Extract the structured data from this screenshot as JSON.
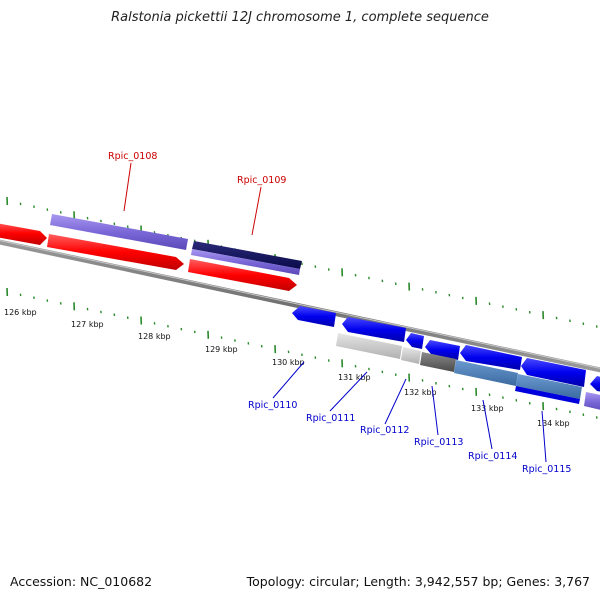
{
  "title": "Ralstonia pickettii 12J chromosome 1, complete sequence",
  "footer": {
    "accession": "Accession: NC_010682",
    "summary": "Topology: circular; Length: 3,942,557 bp; Genes: 3,767"
  },
  "colors": {
    "forward_gene": "#ff0000",
    "reverse_gene": "#0000ee",
    "forward_label": "#cc0000",
    "reverse_label": "#0000cc",
    "ticks": "#2a8a2a"
  },
  "tick_labels": [
    "126 kbp",
    "127 kbp",
    "128 kbp",
    "129 kbp",
    "130 kbp",
    "131 kbp",
    "132 kbp",
    "133 kbp",
    "134 kbp"
  ],
  "gene_labels": {
    "forward": [
      "Rpic_0108",
      "Rpic_0109"
    ],
    "reverse": [
      "Rpic_0110",
      "Rpic_0111",
      "Rpic_0112",
      "Rpic_0113",
      "Rpic_0114",
      "Rpic_0115"
    ]
  }
}
